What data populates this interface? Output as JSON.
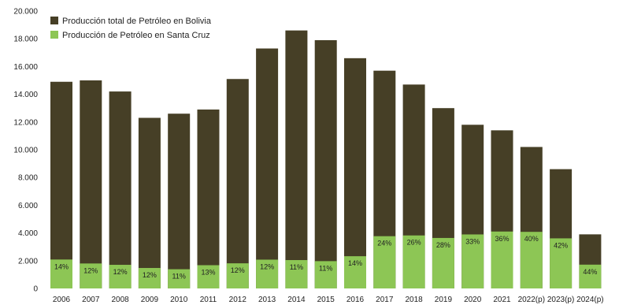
{
  "chart_data": {
    "type": "bar",
    "categories": [
      "2006",
      "2007",
      "2008",
      "2009",
      "2010",
      "2011",
      "2012",
      "2013",
      "2014",
      "2015",
      "2016",
      "2017",
      "2018",
      "2019",
      "2020",
      "2021",
      "2022(p)",
      "2023(p)",
      "2024(p)"
    ],
    "series": [
      {
        "name": "Producción total de Petróleo en Bolivia",
        "color": "#463f26",
        "values": [
          14900,
          15000,
          14200,
          12300,
          12600,
          12900,
          15100,
          17300,
          18600,
          17900,
          16600,
          15700,
          14700,
          13000,
          11800,
          11400,
          10200,
          8600,
          3900
        ]
      },
      {
        "name": "Producción de Petróleo en Santa Cruz",
        "color": "#8dc655",
        "values": [
          2086,
          1800,
          1704,
          1476,
          1386,
          1677,
          1812,
          2076,
          2046,
          1969,
          2324,
          3768,
          3822,
          3640,
          3894,
          4104,
          4080,
          3612,
          1716
        ]
      }
    ],
    "share_labels": [
      "14%",
      "12%",
      "12%",
      "12%",
      "11%",
      "13%",
      "12%",
      "12%",
      "11%",
      "11%",
      "14%",
      "24%",
      "26%",
      "28%",
      "33%",
      "36%",
      "40%",
      "42%",
      "44%"
    ],
    "y_ticks": [
      "0",
      "2.000",
      "4.000",
      "6.000",
      "8.000",
      "10.000",
      "12.000",
      "14.000",
      "16.000",
      "18.000",
      "20.000"
    ],
    "ylim": [
      0,
      20000
    ],
    "grid": false,
    "legend_position": "top-left",
    "title": "",
    "xlabel": "",
    "ylabel": ""
  }
}
